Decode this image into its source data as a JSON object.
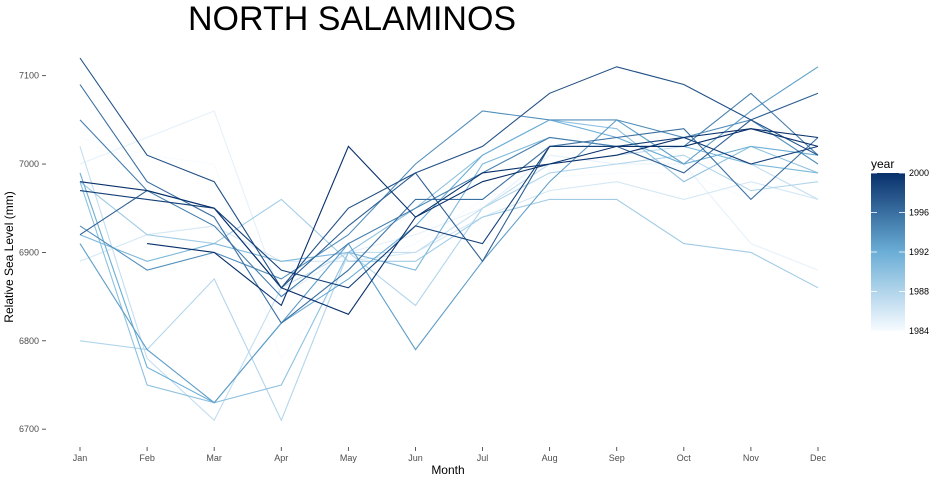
{
  "chart_data": {
    "type": "line",
    "title": "NORTH SALAMINOS",
    "xlabel": "Month",
    "ylabel": "Relative Sea Level (mm)",
    "categories": [
      "Jan",
      "Feb",
      "Mar",
      "Apr",
      "May",
      "Jun",
      "Jul",
      "Aug",
      "Sep",
      "Oct",
      "Nov",
      "Dec"
    ],
    "ylim": [
      6690,
      7120
    ],
    "yticks": [
      6700,
      6800,
      6900,
      7000,
      7100
    ],
    "grid": false,
    "legend": {
      "title": "year",
      "placement": "right",
      "min": 1984,
      "max": 2000,
      "ticks": [
        1984,
        1988,
        1992,
        1996,
        2000
      ],
      "color_low": "#f7fbff",
      "color_high": "#08306b"
    },
    "series": [
      {
        "year": 1984,
        "values": [
          7030,
          7010,
          7000,
          6780,
          6880,
          6910,
          6960,
          6985,
          6990,
          6990,
          6960,
          7000
        ]
      },
      {
        "year": 1985,
        "values": [
          7000,
          7030,
          7060,
          6850,
          6900,
          6920,
          6950,
          7010,
          7000,
          7000,
          6910,
          6880
        ]
      },
      {
        "year": 1986,
        "values": [
          6890,
          6920,
          6930,
          6890,
          6890,
          6900,
          6940,
          6970,
          6980,
          6960,
          6980,
          6960
        ]
      },
      {
        "year": 1987,
        "values": [
          7020,
          6780,
          6710,
          6860,
          6900,
          6900,
          6950,
          7000,
          7010,
          7020,
          7000,
          6960
        ]
      },
      {
        "year": 1988,
        "values": [
          6800,
          6790,
          6870,
          6710,
          6900,
          6840,
          6950,
          6990,
          7000,
          7010,
          6970,
          6980
        ]
      },
      {
        "year": 1989,
        "values": [
          6980,
          6920,
          6910,
          6960,
          6890,
          6890,
          6940,
          6960,
          6960,
          6910,
          6900,
          6860
        ]
      },
      {
        "year": 1990,
        "values": [
          6980,
          6750,
          6730,
          6750,
          6900,
          6950,
          7010,
          7050,
          7040,
          6980,
          7020,
          6990
        ]
      },
      {
        "year": 1991,
        "values": [
          6920,
          6890,
          6910,
          6890,
          6900,
          6880,
          7000,
          7030,
          7020,
          7020,
          7000,
          6990
        ]
      },
      {
        "year": 1992,
        "values": [
          6990,
          6770,
          6730,
          6820,
          6870,
          6930,
          7010,
          7050,
          7030,
          7000,
          7020,
          7010
        ]
      },
      {
        "year": 1993,
        "values": [
          6910,
          6790,
          6730,
          6820,
          6910,
          6790,
          6890,
          6980,
          7050,
          7000,
          7060,
          7110
        ]
      },
      {
        "year": 1994,
        "values": [
          6930,
          6880,
          6900,
          6870,
          6920,
          7000,
          7060,
          7050,
          7050,
          7030,
          7050,
          7000
        ]
      },
      {
        "year": 1995,
        "values": [
          7050,
          6970,
          6930,
          6850,
          6910,
          6950,
          6990,
          7030,
          7020,
          7020,
          7080,
          7010
        ]
      },
      {
        "year": 1996,
        "values": [
          7090,
          6980,
          6940,
          6820,
          6880,
          6960,
          6960,
          7020,
          7030,
          7040,
          6960,
          7030
        ]
      },
      {
        "year": 1997,
        "values": [
          6920,
          6970,
          6950,
          6860,
          6930,
          6990,
          6890,
          7020,
          7020,
          6990,
          7050,
          7080
        ]
      },
      {
        "year": 1998,
        "values": [
          7120,
          7010,
          6980,
          6860,
          6950,
          6990,
          7020,
          7080,
          7110,
          7090,
          7050,
          7010
        ]
      },
      {
        "year": 1999,
        "values": [
          6970,
          6960,
          6950,
          6880,
          6860,
          6930,
          6910,
          7020,
          7020,
          7030,
          7000,
          7020
        ]
      },
      {
        "year": 2000,
        "values": [
          6980,
          6970,
          6950,
          6860,
          6830,
          6940,
          6990,
          7000,
          7010,
          7030,
          7040,
          7020
        ]
      },
      {
        "year": 2000,
        "values": [
          null,
          6910,
          6900,
          6840,
          7020,
          6940,
          6980,
          7000,
          7020,
          7020,
          7040,
          7030
        ]
      }
    ]
  }
}
